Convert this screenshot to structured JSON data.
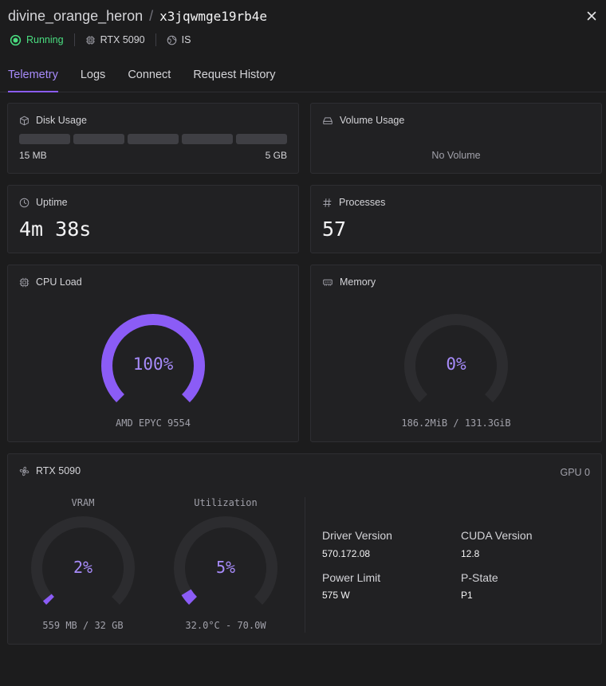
{
  "header": {
    "name": "divine_orange_heron",
    "separator": "/",
    "id": "x3jqwmge19rb4e"
  },
  "meta": {
    "status": "Running",
    "gpu": "RTX 5090",
    "region": "IS"
  },
  "tabs": [
    "Telemetry",
    "Logs",
    "Connect",
    "Request History"
  ],
  "active_tab": "Telemetry",
  "disk": {
    "title": "Disk Usage",
    "min": "15 MB",
    "max": "5 GB",
    "fill_fraction": 0.0
  },
  "volume": {
    "title": "Volume Usage",
    "empty_text": "No Volume"
  },
  "uptime": {
    "title": "Uptime",
    "value": "4m 38s"
  },
  "processes": {
    "title": "Processes",
    "value": "57"
  },
  "cpu": {
    "title": "CPU Load",
    "value_text": "100%",
    "percent": 100,
    "subtitle": "AMD EPYC 9554"
  },
  "memory": {
    "title": "Memory",
    "value_text": "0%",
    "percent": 0,
    "subtitle": "186.2MiB / 131.3GiB"
  },
  "gpu": {
    "title": "RTX 5090",
    "index_label": "GPU 0",
    "vram": {
      "title": "VRAM",
      "value_text": "2%",
      "percent": 2,
      "subtitle": "559 MB / 32 GB"
    },
    "utilization": {
      "title": "Utilization",
      "value_text": "5%",
      "percent": 5,
      "subtitle": "32.0°C - 70.0W"
    },
    "specs": {
      "driver_label": "Driver Version",
      "driver_value": "570.172.08",
      "cuda_label": "CUDA Version",
      "cuda_value": "12.8",
      "power_label": "Power Limit",
      "power_value": "575 W",
      "pstate_label": "P-State",
      "pstate_value": "P1"
    }
  },
  "colors": {
    "accent": "#8b5cf6",
    "accent_text": "#a78bfa",
    "running": "#4ade80",
    "track": "#2c2c2f"
  }
}
